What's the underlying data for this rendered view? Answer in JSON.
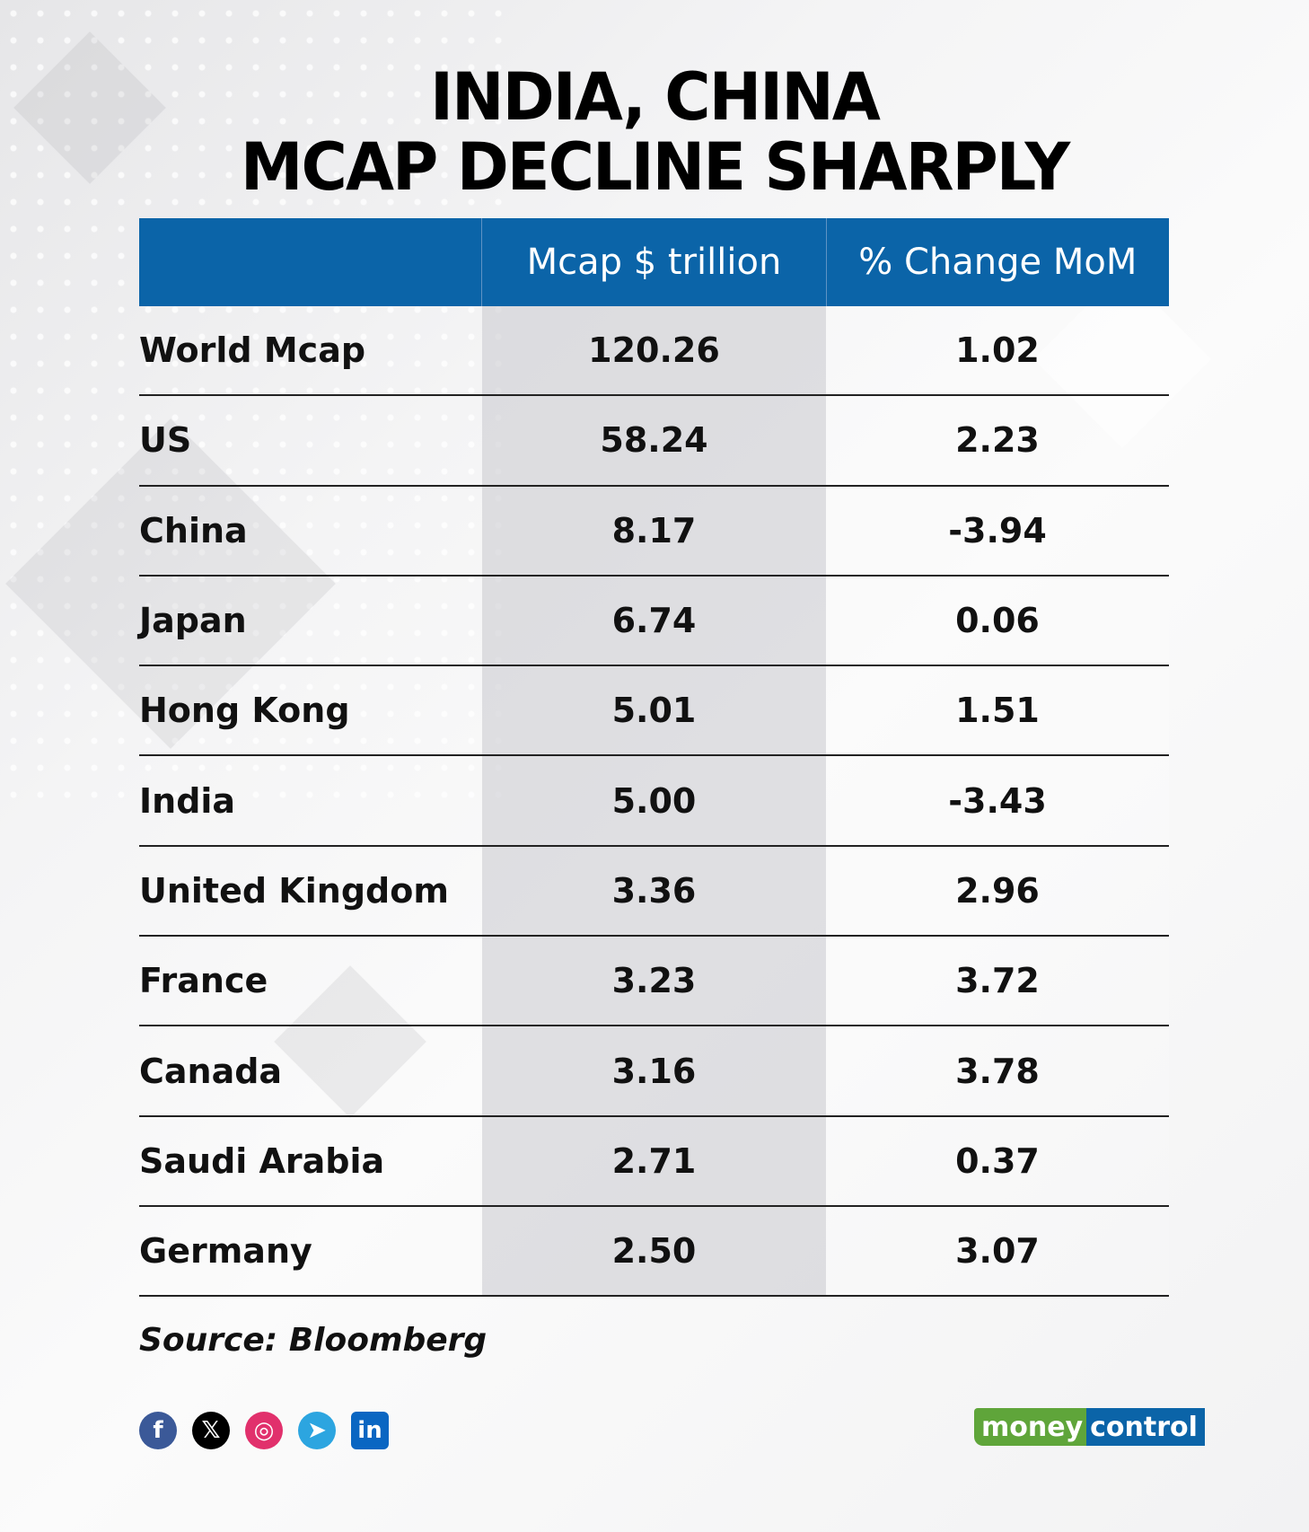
{
  "title": {
    "line1": "INDIA, CHINA",
    "line2": "MCAP DECLINE SHARPLY"
  },
  "table": {
    "headers": [
      "",
      "Mcap $ trillion",
      "% Change MoM"
    ],
    "rows": [
      {
        "country": "World Mcap",
        "mcap": "120.26",
        "change": "1.02"
      },
      {
        "country": "US",
        "mcap": "58.24",
        "change": "2.23"
      },
      {
        "country": "China",
        "mcap": "8.17",
        "change": "-3.94"
      },
      {
        "country": "Japan",
        "mcap": "6.74",
        "change": "0.06"
      },
      {
        "country": "Hong Kong",
        "mcap": "5.01",
        "change": "1.51"
      },
      {
        "country": "India",
        "mcap": "5.00",
        "change": "-3.43"
      },
      {
        "country": "United Kingdom",
        "mcap": "3.36",
        "change": "2.96"
      },
      {
        "country": "France",
        "mcap": "3.23",
        "change": "3.72"
      },
      {
        "country": "Canada",
        "mcap": "3.16",
        "change": "3.78"
      },
      {
        "country": "Saudi Arabia",
        "mcap": "2.71",
        "change": "0.37"
      },
      {
        "country": "Germany",
        "mcap": "2.50",
        "change": "3.07"
      }
    ]
  },
  "source": "Source: Bloomberg",
  "social": [
    {
      "name": "facebook-icon",
      "glyph": "f",
      "color": "#3b5998"
    },
    {
      "name": "x-icon",
      "glyph": "𝕏",
      "color": "#000000"
    },
    {
      "name": "instagram-icon",
      "glyph": "◎",
      "color": "#e1306c"
    },
    {
      "name": "telegram-icon",
      "glyph": "➤",
      "color": "#2ca5e0"
    },
    {
      "name": "linkedin-icon",
      "glyph": "in",
      "color": "#0a66c2"
    }
  ],
  "logo": {
    "part1": "money",
    "part2": "control"
  },
  "colors": {
    "header_bg": "#0b64a8",
    "logo_green": "#5fa53a",
    "logo_blue": "#0b64a8"
  }
}
